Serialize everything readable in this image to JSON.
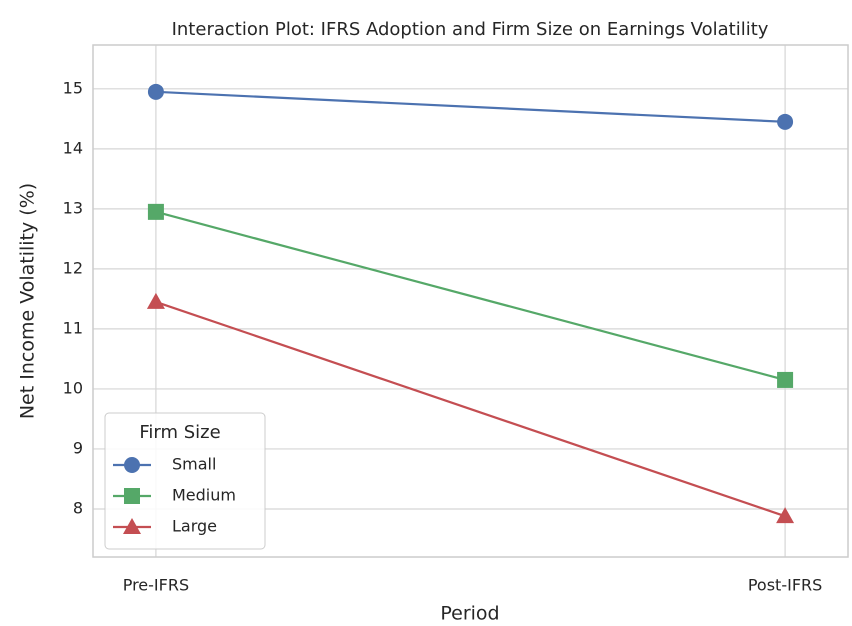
{
  "chart_data": {
    "type": "line",
    "title": "Interaction Plot: IFRS Adoption and Firm Size on Earnings Volatility",
    "x_label": "Period",
    "y_label": "Net Income Volatility (%)",
    "categories": [
      "Pre-IFRS",
      "Post-IFRS"
    ],
    "series": [
      {
        "name": "Small",
        "color": "#4c72b0",
        "marker": "circle",
        "values": [
          14.95,
          14.45
        ]
      },
      {
        "name": "Medium",
        "color": "#55a868",
        "marker": "square",
        "values": [
          12.95,
          10.15
        ]
      },
      {
        "name": "Large",
        "color": "#c44e52",
        "marker": "triangle",
        "values": [
          11.45,
          7.88
        ]
      }
    ],
    "ylim": [
      7.2,
      15.73
    ],
    "yticks": [
      8,
      9,
      10,
      11,
      12,
      13,
      14,
      15
    ],
    "grid": true,
    "legend_title": "Firm Size",
    "legend": "lower left"
  }
}
